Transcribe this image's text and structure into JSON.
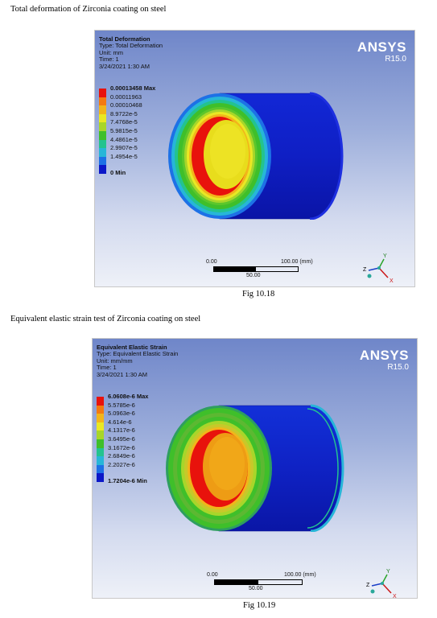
{
  "figures": [
    {
      "heading": "Total deformation of Zirconia coating on steel",
      "caption": "Fig 10.18",
      "result_title": "Total Deformation",
      "type_line": "Type: Total Deformation",
      "unit_line": "Unit: mm",
      "time_line": "Time: 1",
      "date_line": "3/24/2021 1:30 AM",
      "brand": "ANSYS",
      "version": "R15.0",
      "legend": [
        {
          "label": "0.00013458 Max",
          "color": "#e8120c"
        },
        {
          "label": "0.00011963",
          "color": "#f47a10"
        },
        {
          "label": "0.00010468",
          "color": "#f2b51a"
        },
        {
          "label": "8.9722e-5",
          "color": "#e9e824"
        },
        {
          "label": "7.4768e-5",
          "color": "#a8d62a"
        },
        {
          "label": "5.9815e-5",
          "color": "#3fbf2a"
        },
        {
          "label": "4.4861e-5",
          "color": "#23c38f"
        },
        {
          "label": "2.9907e-5",
          "color": "#27b6d8"
        },
        {
          "label": "1.4954e-5",
          "color": "#1d71e6"
        },
        {
          "label": "0 Min",
          "color": "#0b17c8"
        }
      ],
      "scale": {
        "left_label": "0.00",
        "right_label": "100.00 (mm)",
        "mid_label": "50.00"
      },
      "axes": {
        "y": "Y",
        "z": "Z",
        "x": "X"
      }
    },
    {
      "heading": "Equivalent elastic strain test of Zirconia coating on steel",
      "caption": "Fig 10.19",
      "result_title": "Equivalent Elastic Strain",
      "type_line": "Type: Equivalent Elastic Strain",
      "unit_line": "Unit: mm/mm",
      "time_line": "Time: 1",
      "date_line": "3/24/2021 1:30 AM",
      "brand": "ANSYS",
      "version": "R15.0",
      "legend": [
        {
          "label": "6.0608e-6 Max",
          "color": "#e8120c"
        },
        {
          "label": "5.5785e-6",
          "color": "#f47a10"
        },
        {
          "label": "5.0963e-6",
          "color": "#f2b51a"
        },
        {
          "label": "4.614e-6",
          "color": "#e9e824"
        },
        {
          "label": "4.1317e-6",
          "color": "#a8d62a"
        },
        {
          "label": "3.6495e-6",
          "color": "#3fbf2a"
        },
        {
          "label": "3.1672e-6",
          "color": "#23c38f"
        },
        {
          "label": "2.6849e-6",
          "color": "#27b6d8"
        },
        {
          "label": "2.2027e-6",
          "color": "#1d71e6"
        },
        {
          "label": "1.7204e-6 Min",
          "color": "#0b17c8"
        }
      ],
      "scale": {
        "left_label": "0.00",
        "right_label": "100.00 (mm)",
        "mid_label": "50.00"
      },
      "axes": {
        "y": "Y",
        "z": "Z",
        "x": "X"
      }
    }
  ]
}
